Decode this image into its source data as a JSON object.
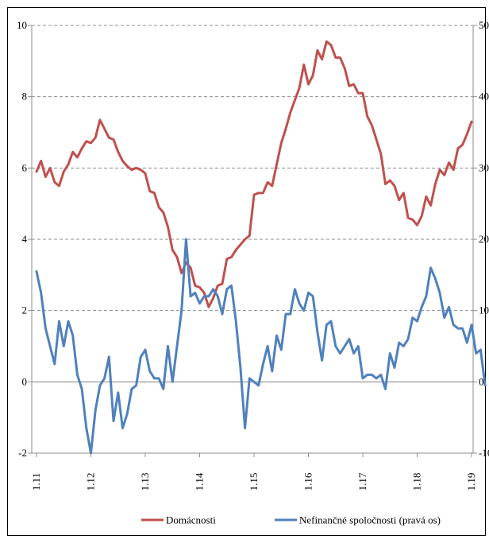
{
  "chart_data": {
    "type": "line",
    "title": "",
    "xlabel": "",
    "ylabel": "",
    "y_left_lim": [
      -2,
      10
    ],
    "y_left_ticks": [
      "-2",
      "0",
      "2",
      "4",
      "6",
      "8",
      "10"
    ],
    "y_right_lim": [
      -10,
      50
    ],
    "y_right_ticks": [
      "-10",
      "0",
      "10",
      "20",
      "30",
      "40",
      "50"
    ],
    "x_tick_labels": [
      "1.11",
      "1.12",
      "1.13",
      "1.14",
      "1.15",
      "1.16",
      "1.17",
      "1.18",
      "1.19"
    ],
    "x_start": "2011-01",
    "grid": "horizontal-dashed",
    "legend_position": "bottom",
    "series": [
      {
        "name": "Domácnosti",
        "axis": "left",
        "color": "#c0504d",
        "values": [
          5.9,
          6.2,
          5.75,
          6.0,
          5.6,
          5.5,
          5.9,
          6.1,
          6.45,
          6.3,
          6.55,
          6.75,
          6.7,
          6.85,
          7.35,
          7.1,
          6.85,
          6.8,
          6.45,
          6.2,
          6.05,
          5.95,
          6.0,
          5.95,
          5.85,
          5.35,
          5.3,
          4.9,
          4.75,
          4.35,
          3.7,
          3.5,
          3.05,
          3.35,
          3.2,
          2.7,
          2.65,
          2.5,
          2.1,
          2.35,
          2.7,
          2.75,
          3.45,
          3.5,
          3.7,
          3.85,
          4.0,
          4.1,
          5.25,
          5.3,
          5.3,
          5.6,
          5.5,
          6.1,
          6.7,
          7.1,
          7.55,
          7.9,
          8.25,
          8.9,
          8.35,
          8.6,
          9.3,
          9.05,
          9.55,
          9.45,
          9.1,
          9.1,
          8.8,
          8.3,
          8.35,
          8.1,
          8.1,
          7.45,
          7.2,
          6.8,
          6.4,
          5.55,
          5.65,
          5.5,
          5.1,
          5.3,
          4.6,
          4.55,
          4.4,
          4.65,
          5.2,
          4.95,
          5.55,
          5.95,
          5.8,
          6.15,
          5.95,
          6.55,
          6.65,
          6.95,
          7.3
        ]
      },
      {
        "name": "Nefinančné spoločnosti (pravá os)",
        "axis": "right",
        "color": "#4f81bd",
        "values": [
          15.5,
          12.5,
          7.5,
          5.0,
          2.5,
          8.5,
          5.0,
          8.5,
          6.5,
          1.0,
          -1.0,
          -6.5,
          -10.0,
          -4.0,
          -0.5,
          0.5,
          3.5,
          -5.5,
          -1.5,
          -6.5,
          -4.5,
          -1.0,
          -0.5,
          3.5,
          4.5,
          1.5,
          0.5,
          0.5,
          -1.0,
          5.0,
          0.0,
          5.0,
          10.0,
          20.0,
          12.0,
          12.5,
          11.0,
          12.0,
          12.0,
          13.0,
          12.0,
          9.5,
          13.0,
          13.5,
          8.5,
          2.0,
          -6.5,
          0.5,
          0.0,
          -0.5,
          2.5,
          5.0,
          1.5,
          6.5,
          4.5,
          9.5,
          9.5,
          13.0,
          11.0,
          10.0,
          12.5,
          12.0,
          7.0,
          3.0,
          8.0,
          8.5,
          5.0,
          4.0,
          5.0,
          6.0,
          4.0,
          5.0,
          0.5,
          1.0,
          1.0,
          0.5,
          1.0,
          -1.0,
          4.0,
          2.0,
          5.5,
          5.0,
          6.0,
          9.0,
          8.5,
          10.5,
          12.0,
          16.0,
          14.5,
          12.5,
          9.0,
          10.5,
          8.0,
          7.5,
          7.5,
          5.5,
          8.0,
          4.0,
          4.5,
          -0.5
        ]
      }
    ]
  }
}
